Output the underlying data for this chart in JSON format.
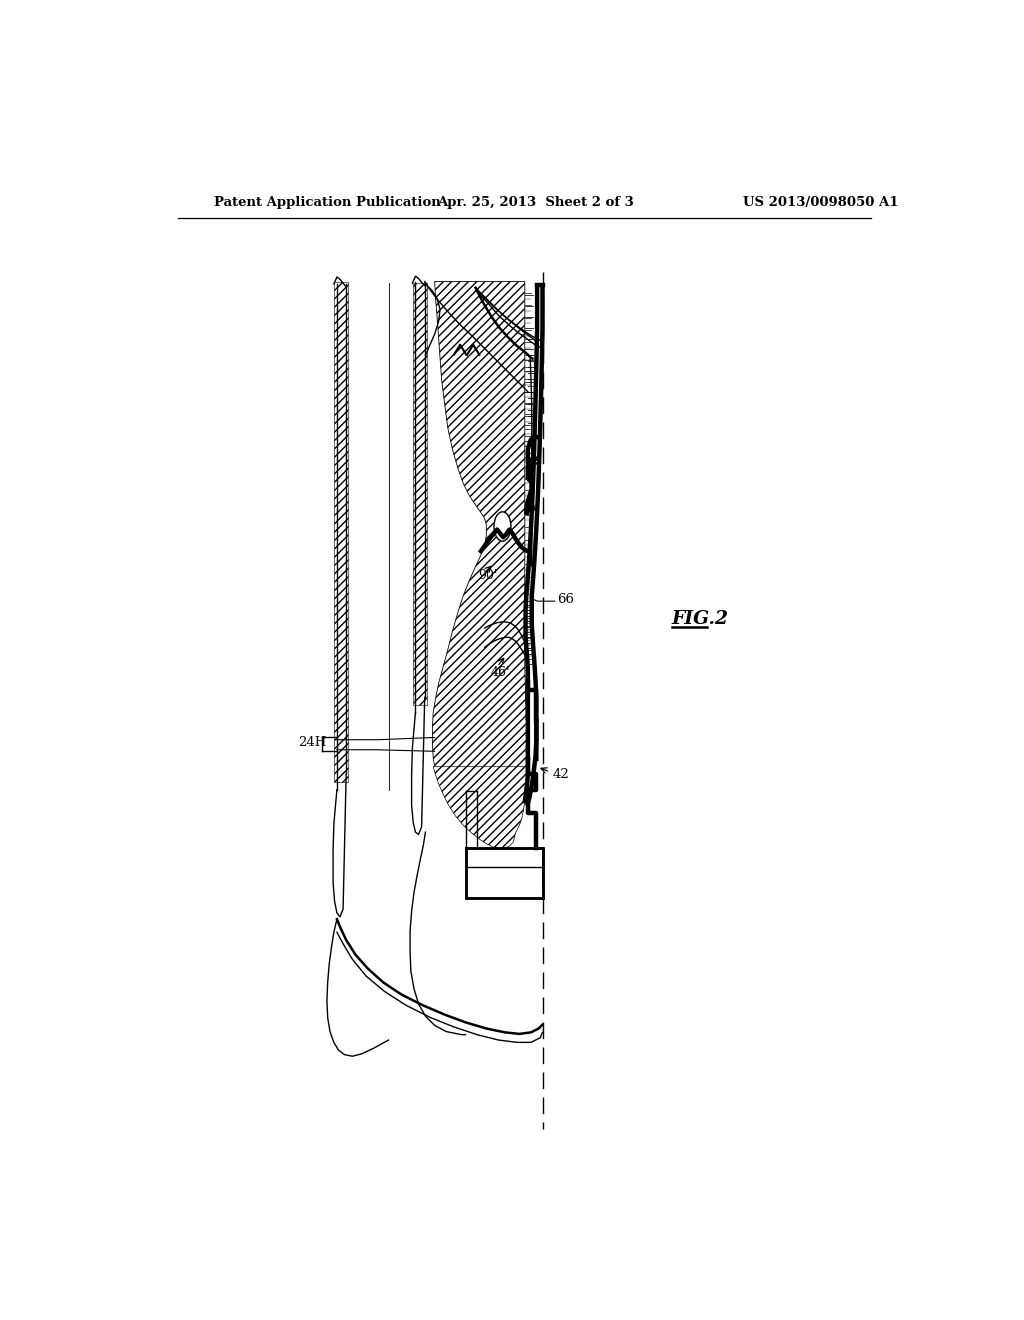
{
  "title_left": "Patent Application Publication",
  "title_mid": "Apr. 25, 2013  Sheet 2 of 3",
  "title_right": "US 2013/0098050 A1",
  "fig_label": "FIG.2",
  "background": "#ffffff",
  "line_color": "#000000"
}
